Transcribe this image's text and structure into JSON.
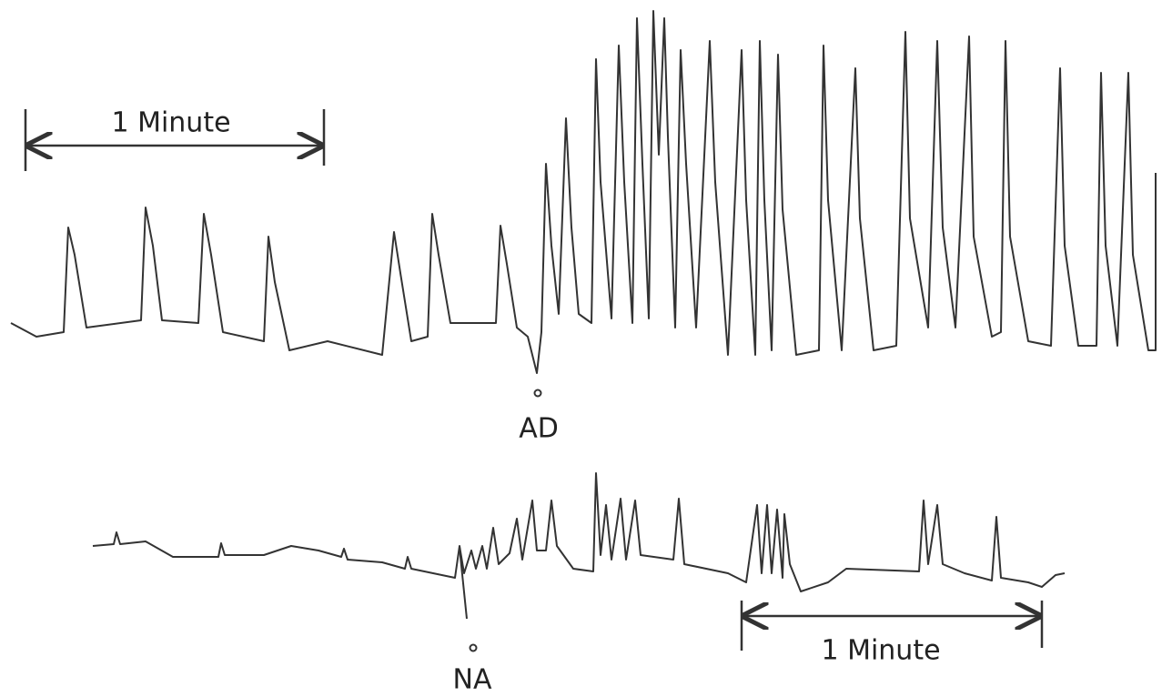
{
  "top_trace": {
    "scale_bar": {
      "label": "1 Minute"
    },
    "marker": {
      "label": "AD"
    }
  },
  "bottom_trace": {
    "scale_bar": {
      "label": "1 Minute"
    },
    "marker": {
      "label": "NA"
    }
  }
}
